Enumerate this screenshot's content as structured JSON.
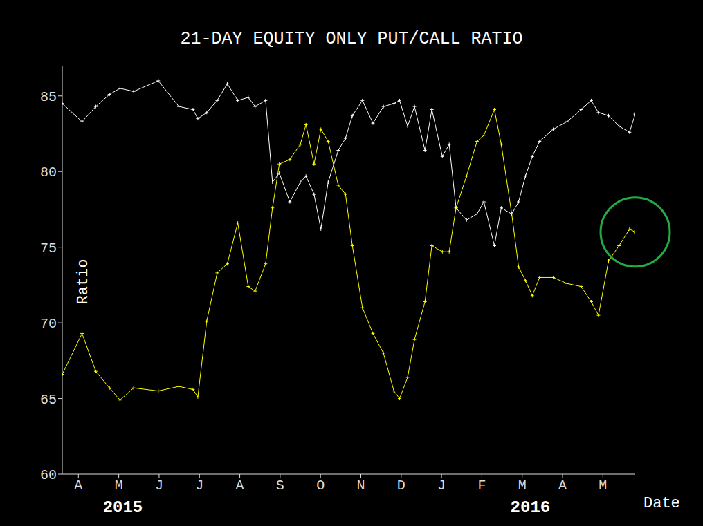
{
  "chart_data": {
    "type": "line",
    "title": "21-DAY EQUITY ONLY PUT/CALL RATIO",
    "y_label": "Ratio",
    "x_label": "Date",
    "x": [
      -0.4,
      0.09,
      0.43,
      0.77,
      1.03,
      1.37,
      1.98,
      2.49,
      2.84,
      2.96,
      3.18,
      3.44,
      3.69,
      3.95,
      4.21,
      4.38,
      4.64,
      4.81,
      4.98,
      5.24,
      5.5,
      5.64,
      5.84,
      6.01,
      6.19,
      6.44,
      6.62,
      6.79,
      7.04,
      7.3,
      7.56,
      7.82,
      7.96,
      8.16,
      8.33,
      8.59,
      8.76,
      9.02,
      9.19,
      9.36,
      9.62,
      9.88,
      10.05,
      10.31,
      10.48,
      10.74,
      10.91,
      11.08,
      11.25,
      11.43,
      11.77,
      12.11,
      12.46,
      12.71,
      12.89,
      13.14,
      13.4,
      13.66,
      13.8
    ],
    "series": [
      {
        "color": "#ffffff",
        "marker": "plus",
        "line_style": "solid",
        "values": [
          84.5,
          83.3,
          84.3,
          85.1,
          85.5,
          85.3,
          86,
          84.3,
          84.1,
          83.5,
          83.9,
          84.7,
          85.8,
          84.7,
          84.9,
          84.3,
          84.7,
          79.3,
          79.9,
          78,
          79.3,
          79.7,
          78.5,
          76.2,
          79.3,
          81.4,
          82.2,
          83.7,
          84.7,
          83.2,
          84.3,
          84.5,
          84.7,
          83,
          84.3,
          81.4,
          84.1,
          81,
          81.8,
          77.6,
          76.8,
          77.2,
          78,
          75.1,
          77.6,
          77.2,
          78,
          79.7,
          81,
          82,
          82.8,
          83.3,
          84.1,
          84.7,
          83.9,
          83.7,
          83,
          82.6,
          83.8
        ]
      },
      {
        "color": "#ffff00",
        "marker": "plus",
        "line_style": "solid",
        "values": [
          66.6,
          69.3,
          66.8,
          65.7,
          64.9,
          65.7,
          65.5,
          65.8,
          65.6,
          65.1,
          70.1,
          73.3,
          73.9,
          76.6,
          72.4,
          72.1,
          73.9,
          77.6,
          80.5,
          80.8,
          81.8,
          83.1,
          80.5,
          82.8,
          82,
          79.1,
          78.5,
          75.1,
          71,
          69.3,
          68,
          65.5,
          65,
          66.4,
          68.9,
          71.4,
          75.1,
          74.7,
          74.7,
          77.6,
          79.7,
          82,
          82.4,
          84.1,
          81.8,
          77.2,
          73.7,
          72.8,
          71.8,
          73,
          73,
          72.6,
          72.4,
          71.4,
          70.5,
          74.1,
          75.1,
          76.2,
          76
        ]
      }
    ],
    "xlim": [
      -0.4,
      13.8
    ],
    "xticks": [
      {
        "value": 0,
        "label": "A"
      },
      {
        "value": 1,
        "label": "M"
      },
      {
        "value": 2,
        "label": "J"
      },
      {
        "value": 3,
        "label": "J"
      },
      {
        "value": 4,
        "label": "A"
      },
      {
        "value": 5,
        "label": "S"
      },
      {
        "value": 6,
        "label": "O"
      },
      {
        "value": 7,
        "label": "N"
      },
      {
        "value": 8,
        "label": "D"
      },
      {
        "value": 9,
        "label": "J"
      },
      {
        "value": 10,
        "label": "F"
      },
      {
        "value": 11,
        "label": "M"
      },
      {
        "value": 12,
        "label": "A"
      },
      {
        "value": 13,
        "label": "M"
      }
    ],
    "ylim": [
      60,
      87
    ],
    "yticks": [
      60,
      65,
      70,
      75,
      80,
      85
    ],
    "annotations": [
      {
        "text": "2015",
        "x": 1.1
      },
      {
        "text": "2016",
        "x": 11.2
      }
    ],
    "grid": false
  }
}
